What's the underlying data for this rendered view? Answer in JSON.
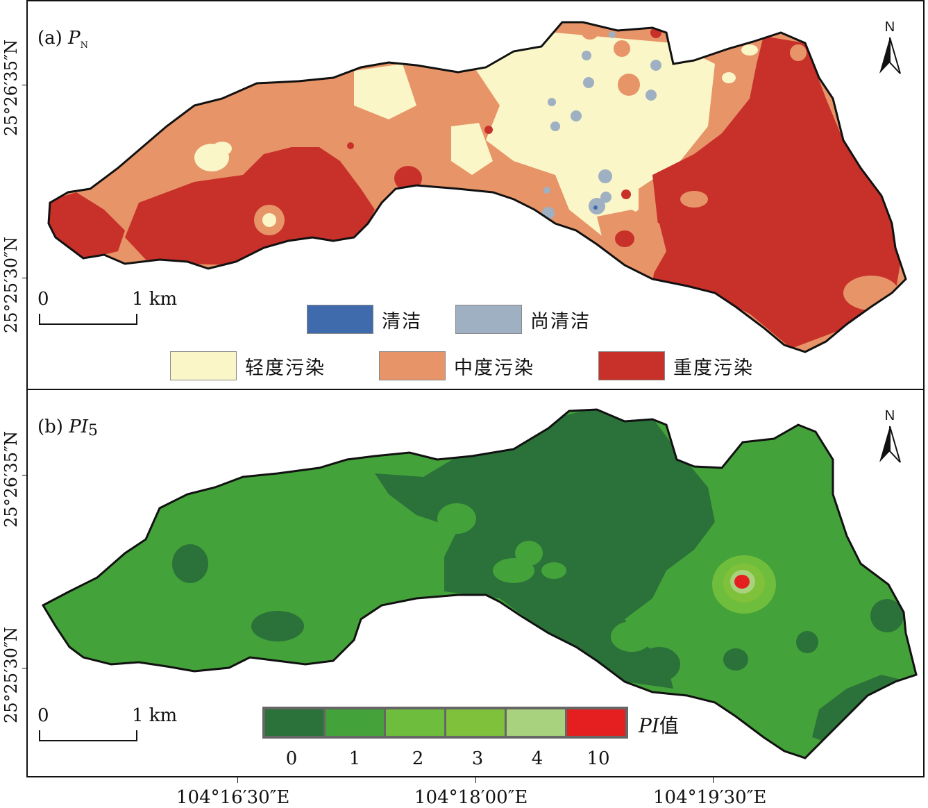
{
  "panel_a": {
    "label_prefix": "(a) ",
    "label_main": "P",
    "label_sub": "N",
    "north": "N",
    "scale_0": "0",
    "scale_1": "1 km",
    "legend": [
      {
        "label": "清洁",
        "color": "#3f6aac"
      },
      {
        "label": "尚清洁",
        "color": "#9fb0c2"
      },
      {
        "label": "轻度污染",
        "color": "#faf6c7"
      },
      {
        "label": "中度污染",
        "color": "#e79468"
      },
      {
        "label": "重度污染",
        "color": "#c8312a"
      }
    ]
  },
  "panel_b": {
    "label_prefix": "(b) ",
    "label_main": "PI",
    "label_sub": "5",
    "north": "N",
    "scale_0": "0",
    "scale_1": "1 km",
    "legend_title_main": "PI",
    "legend_title_suffix": "值",
    "legend": [
      {
        "label": "0",
        "color": "#2a7239"
      },
      {
        "label": "1",
        "color": "#44a23a"
      },
      {
        "label": "2",
        "color": "#6fbd3c"
      },
      {
        "label": "3",
        "color": "#7fc13a"
      },
      {
        "label": "4",
        "color": "#a9d27e"
      },
      {
        "label": "10",
        "color": "#e51f1f"
      }
    ]
  },
  "axes": {
    "lat_top": "25°26′35″N",
    "lat_bottom": "25°25′30″N",
    "lon": [
      "104°16′30″E",
      "104°18′00″E",
      "104°19′30″E"
    ]
  }
}
